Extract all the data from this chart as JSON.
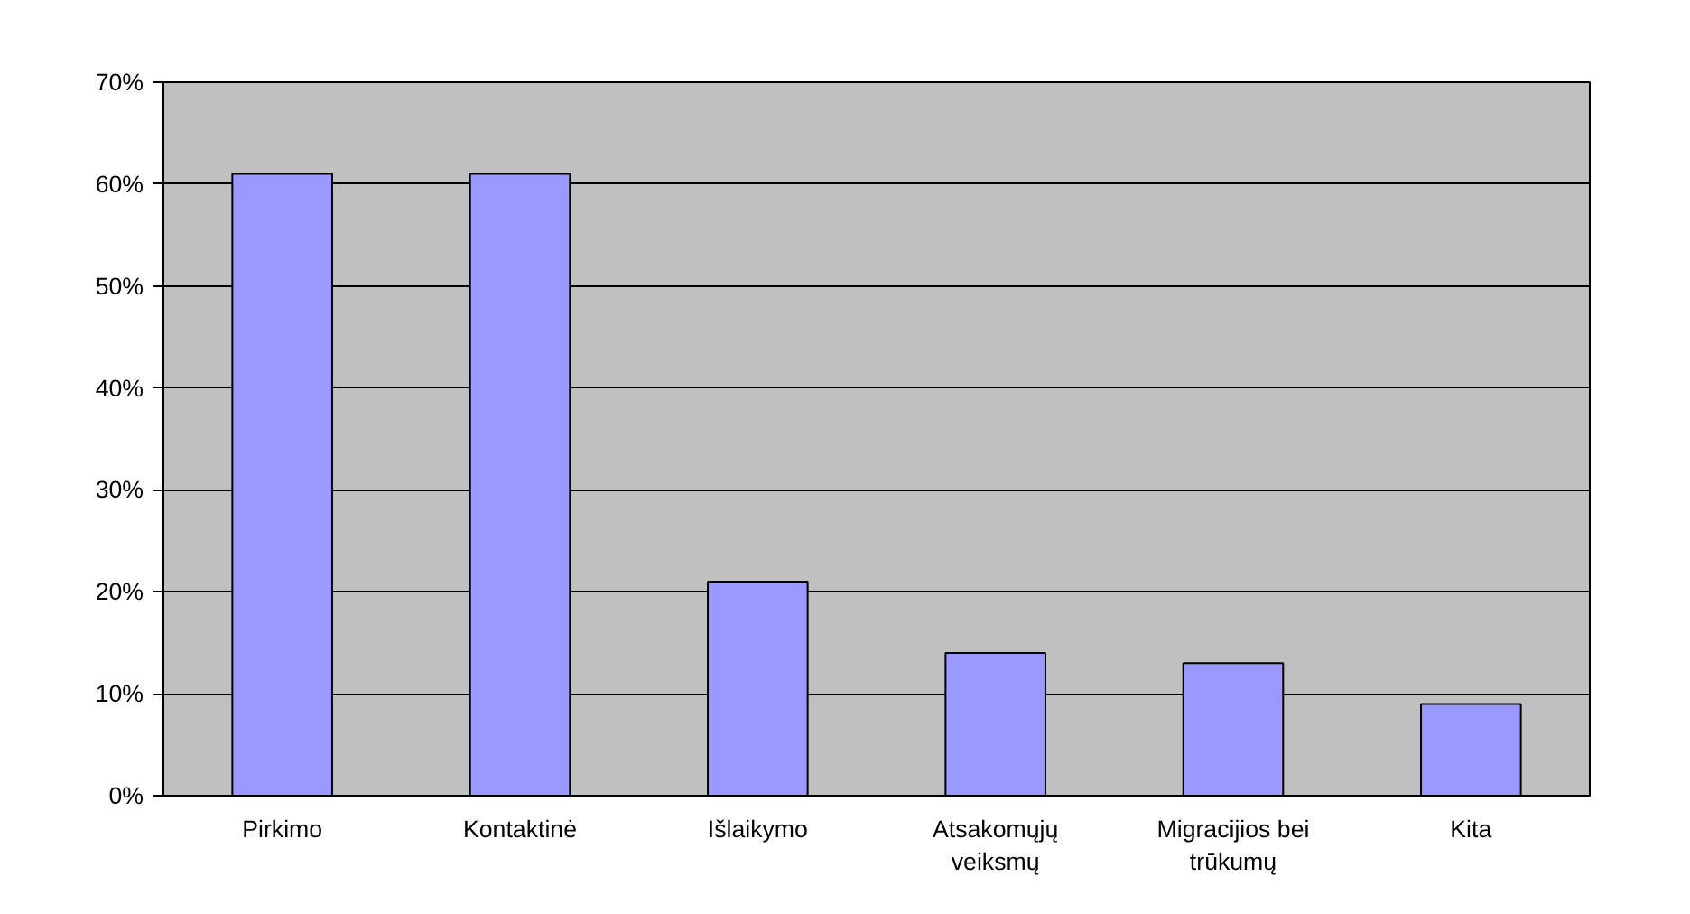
{
  "chart_data": {
    "type": "bar",
    "categories": [
      "Pirkimo",
      "Kontaktinė",
      "Išlaikymo",
      "Atsakomųjų veiksmų",
      "Migracijios bei trūkumų",
      "Kita"
    ],
    "values": [
      61,
      61,
      21,
      14,
      13,
      9
    ],
    "color": "#9999ff",
    "ylim": [
      0,
      70
    ],
    "yticks": [
      {
        "value": 0,
        "label": "0%"
      },
      {
        "value": 10,
        "label": "10%"
      },
      {
        "value": 20,
        "label": "20%"
      },
      {
        "value": 30,
        "label": "30%"
      },
      {
        "value": 40,
        "label": "40%"
      },
      {
        "value": 50,
        "label": "50%"
      },
      {
        "value": 60,
        "label": "60%"
      },
      {
        "value": 70,
        "label": "70%"
      }
    ],
    "grid": "y"
  }
}
